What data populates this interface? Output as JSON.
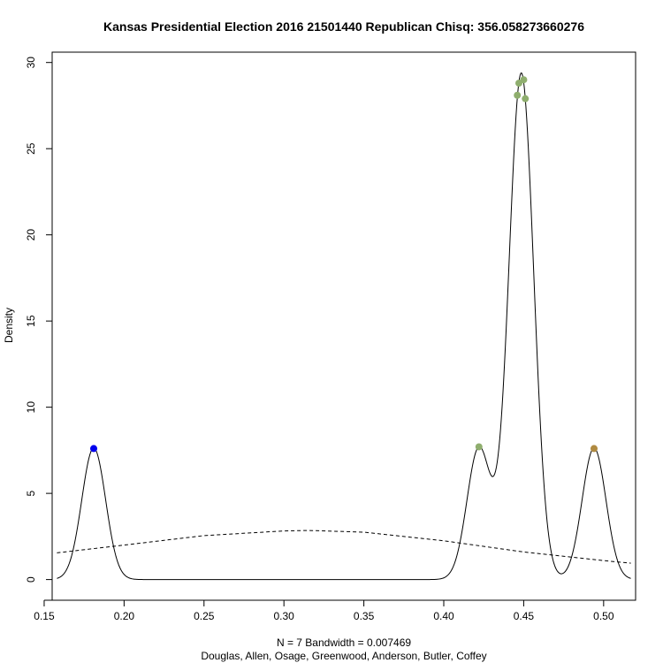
{
  "chart_data": {
    "type": "line",
    "title": "Kansas Presidential Election 2016 21501440 Republican Chisq: 356.058273660276",
    "ylabel": "Density",
    "xlabel_line1": "N = 7   Bandwidth = 0.007469",
    "xlabel_line2": "Douglas, Allen, Osage, Greenwood, Anderson, Butler, Coffey",
    "xlim": [
      0.155,
      0.52
    ],
    "ylim": [
      -1.2,
      30.6
    ],
    "x_ticks": [
      0.15,
      0.2,
      0.25,
      0.3,
      0.35,
      0.4,
      0.45,
      0.5
    ],
    "x_tick_labels": [
      "0.15",
      "0.20",
      "0.25",
      "0.30",
      "0.35",
      "0.40",
      "0.45",
      "0.50"
    ],
    "y_ticks": [
      0,
      5,
      10,
      15,
      20,
      25,
      30
    ],
    "y_tick_labels": [
      "0",
      "5",
      "10",
      "15",
      "20",
      "25",
      "30"
    ],
    "bandwidth": 0.007469,
    "kde_range": [
      0.158,
      0.517
    ],
    "points": [
      {
        "x": 0.181,
        "y": 7.6,
        "color": "#0000ee"
      },
      {
        "x": 0.422,
        "y": 7.7,
        "color": "#8fae6e"
      },
      {
        "x": 0.446,
        "y": 28.1,
        "color": "#8fae6e"
      },
      {
        "x": 0.447,
        "y": 28.8,
        "color": "#8fae6e"
      },
      {
        "x": 0.45,
        "y": 29.0,
        "color": "#8fae6e"
      },
      {
        "x": 0.451,
        "y": 27.9,
        "color": "#8fae6e"
      },
      {
        "x": 0.494,
        "y": 7.6,
        "color": "#b08a40"
      }
    ],
    "reference_curve": {
      "style": "dashed",
      "x": [
        0.158,
        0.2,
        0.25,
        0.3,
        0.315,
        0.35,
        0.4,
        0.45,
        0.5,
        0.517
      ],
      "y": [
        1.55,
        2.0,
        2.55,
        2.82,
        2.85,
        2.75,
        2.25,
        1.6,
        1.1,
        0.95
      ]
    }
  }
}
